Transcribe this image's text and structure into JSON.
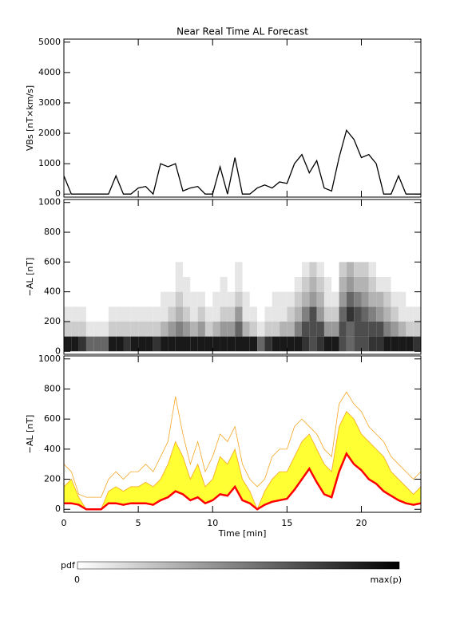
{
  "chart_data": [
    {
      "type": "line",
      "title": "Near Real Time AL Forecast",
      "ylabel": "VBs [nT×km/s]",
      "color": "#000000",
      "x": [
        0,
        0.5,
        1,
        1.5,
        2,
        2.5,
        3,
        3.5,
        4,
        4.5,
        5,
        5.5,
        6,
        6.5,
        7,
        7.5,
        8,
        8.5,
        9,
        9.5,
        10,
        10.5,
        11,
        11.5,
        12,
        12.5,
        13,
        13.5,
        14,
        14.5,
        15,
        15.5,
        16,
        16.5,
        17,
        17.5,
        18,
        18.5,
        19,
        19.5,
        20,
        20.5,
        21,
        21.5,
        22,
        22.5,
        23,
        23.5,
        24
      ],
      "values": [
        600,
        0,
        0,
        0,
        0,
        0,
        0,
        600,
        0,
        0,
        200,
        250,
        0,
        1000,
        900,
        1000,
        100,
        200,
        250,
        0,
        0,
        900,
        0,
        1200,
        0,
        0,
        200,
        300,
        200,
        400,
        350,
        1000,
        1300,
        700,
        1100,
        200,
        100,
        1200,
        2100,
        1800,
        1200,
        1300,
        1000,
        0,
        0,
        600,
        0,
        0,
        0
      ],
      "xlim": [
        0,
        24
      ],
      "xticks": [
        0,
        5,
        10,
        15,
        20
      ],
      "show_xtick_labels": false,
      "ylim": [
        -100,
        5100
      ],
      "yticks": [
        0,
        1000,
        2000,
        3000,
        4000,
        5000
      ]
    },
    {
      "type": "heatmap",
      "ylabel": "−AL [nT]",
      "xbins": [
        0,
        0.5,
        1,
        1.5,
        2,
        2.5,
        3,
        3.5,
        4,
        4.5,
        5,
        5.5,
        6,
        6.5,
        7,
        7.5,
        8,
        8.5,
        9,
        9.5,
        10,
        10.5,
        11,
        11.5,
        12,
        12.5,
        13,
        13.5,
        14,
        14.5,
        15,
        15.5,
        16,
        16.5,
        17,
        17.5,
        18,
        18.5,
        19,
        19.5,
        20,
        20.5,
        21,
        21.5,
        22,
        22.5,
        23,
        23.5,
        24
      ],
      "ybins": [
        0,
        100,
        200,
        300,
        400,
        500,
        600
      ],
      "z": [
        [
          0.9,
          0.9,
          0.8,
          0.6,
          0.6,
          0.6,
          0.9,
          0.9,
          0.8,
          0.9,
          0.9,
          0.9,
          0.8,
          0.9,
          0.9,
          0.9,
          0.9,
          0.9,
          0.9,
          0.9,
          0.9,
          0.9,
          0.9,
          0.9,
          0.9,
          0.9,
          0.6,
          0.8,
          0.9,
          0.9,
          0.9,
          0.9,
          0.8,
          0.7,
          0.8,
          0.9,
          0.9,
          0.7,
          0.6,
          0.7,
          0.7,
          0.8,
          0.8,
          0.9,
          0.9,
          0.9,
          0.9,
          0.8
        ],
        [
          0.2,
          0.2,
          0.2,
          0.1,
          0.1,
          0.1,
          0.2,
          0.2,
          0.2,
          0.2,
          0.2,
          0.2,
          0.2,
          0.3,
          0.4,
          0.5,
          0.4,
          0.3,
          0.4,
          0.2,
          0.3,
          0.4,
          0.4,
          0.6,
          0.3,
          0.2,
          0.1,
          0.2,
          0.2,
          0.3,
          0.3,
          0.5,
          0.7,
          0.7,
          0.7,
          0.4,
          0.4,
          0.7,
          0.6,
          0.7,
          0.7,
          0.7,
          0.7,
          0.5,
          0.4,
          0.3,
          0.2,
          0.2
        ],
        [
          0.1,
          0.1,
          0.1,
          0,
          0,
          0,
          0.1,
          0.1,
          0.1,
          0.1,
          0.1,
          0.1,
          0.1,
          0.1,
          0.2,
          0.3,
          0.2,
          0.1,
          0.2,
          0.1,
          0.1,
          0.2,
          0.2,
          0.4,
          0.1,
          0.1,
          0,
          0.1,
          0.1,
          0.1,
          0.2,
          0.3,
          0.5,
          0.7,
          0.4,
          0.2,
          0.2,
          0.6,
          0.8,
          0.7,
          0.6,
          0.5,
          0.4,
          0.3,
          0.2,
          0.1,
          0.1,
          0.1
        ],
        [
          0,
          0,
          0,
          0,
          0,
          0,
          0,
          0,
          0,
          0,
          0,
          0,
          0,
          0.1,
          0.1,
          0.2,
          0.1,
          0.1,
          0.1,
          0,
          0.1,
          0.1,
          0.1,
          0.2,
          0.1,
          0,
          0,
          0,
          0.1,
          0.1,
          0.1,
          0.2,
          0.3,
          0.4,
          0.3,
          0.1,
          0.1,
          0.4,
          0.6,
          0.5,
          0.4,
          0.3,
          0.3,
          0.2,
          0.1,
          0.1,
          0,
          0
        ],
        [
          0,
          0,
          0,
          0,
          0,
          0,
          0,
          0,
          0,
          0,
          0,
          0,
          0,
          0,
          0,
          0.1,
          0.1,
          0,
          0,
          0,
          0,
          0.1,
          0,
          0.1,
          0,
          0,
          0,
          0,
          0,
          0,
          0,
          0.1,
          0.2,
          0.3,
          0.2,
          0.1,
          0,
          0.3,
          0.4,
          0.3,
          0.3,
          0.2,
          0.1,
          0.1,
          0,
          0,
          0,
          0
        ],
        [
          0,
          0,
          0,
          0,
          0,
          0,
          0,
          0,
          0,
          0,
          0,
          0,
          0,
          0,
          0,
          0.1,
          0,
          0,
          0,
          0,
          0,
          0,
          0,
          0.1,
          0,
          0,
          0,
          0,
          0,
          0,
          0,
          0,
          0.1,
          0.2,
          0.1,
          0,
          0,
          0.2,
          0.3,
          0.2,
          0.2,
          0.1,
          0,
          0,
          0,
          0,
          0,
          0
        ]
      ],
      "xlim": [
        0,
        24
      ],
      "xticks": [
        0,
        5,
        10,
        15,
        20
      ],
      "show_xtick_labels": false,
      "ylim": [
        -20,
        1020
      ],
      "yticks": [
        0,
        200,
        400,
        600,
        800,
        1000
      ]
    },
    {
      "type": "band",
      "ylabel": "−AL [nT]",
      "xlabel": "Time [min]",
      "x": [
        0,
        0.5,
        1,
        1.5,
        2,
        2.5,
        3,
        3.5,
        4,
        4.5,
        5,
        5.5,
        6,
        6.5,
        7,
        7.5,
        8,
        8.5,
        9,
        9.5,
        10,
        10.5,
        11,
        11.5,
        12,
        12.5,
        13,
        13.5,
        14,
        14.5,
        15,
        15.5,
        16,
        16.5,
        17,
        17.5,
        18,
        18.5,
        19,
        19.5,
        20,
        20.5,
        21,
        21.5,
        22,
        22.5,
        23,
        23.5,
        24
      ],
      "series": [
        {
          "color": "#f5a623",
          "values": [
            300,
            250,
            100,
            80,
            80,
            80,
            200,
            250,
            200,
            250,
            250,
            300,
            250,
            350,
            450,
            750,
            500,
            300,
            450,
            250,
            350,
            500,
            450,
            550,
            300,
            200,
            150,
            200,
            350,
            400,
            400,
            550,
            600,
            550,
            500,
            400,
            350,
            700,
            780,
            700,
            650,
            550,
            500,
            450,
            350,
            300,
            250,
            200,
            250
          ]
        },
        {
          "color": "#ffff33",
          "fill": true,
          "values": [
            150,
            200,
            80,
            0,
            0,
            0,
            120,
            150,
            120,
            150,
            150,
            180,
            150,
            200,
            300,
            450,
            350,
            200,
            300,
            150,
            200,
            350,
            300,
            400,
            200,
            120,
            0,
            120,
            200,
            250,
            250,
            350,
            450,
            500,
            400,
            300,
            250,
            550,
            650,
            600,
            500,
            450,
            400,
            350,
            250,
            200,
            150,
            100,
            150
          ]
        },
        {
          "color": "#ff0000",
          "values": [
            40,
            40,
            30,
            0,
            0,
            0,
            40,
            40,
            30,
            40,
            40,
            40,
            30,
            60,
            80,
            120,
            100,
            60,
            80,
            40,
            60,
            100,
            90,
            150,
            60,
            40,
            0,
            30,
            50,
            60,
            70,
            130,
            200,
            270,
            180,
            100,
            80,
            250,
            370,
            300,
            260,
            200,
            170,
            120,
            90,
            60,
            40,
            30,
            40
          ]
        }
      ],
      "xlim": [
        0,
        24
      ],
      "xticks": [
        0,
        5,
        10,
        15,
        20
      ],
      "show_xtick_labels": true,
      "ylim": [
        -20,
        1020
      ],
      "yticks": [
        0,
        200,
        400,
        600,
        800,
        1000
      ]
    }
  ],
  "colorbar": {
    "label": "pdf",
    "min_label": "0",
    "max_label": "max(p)"
  }
}
